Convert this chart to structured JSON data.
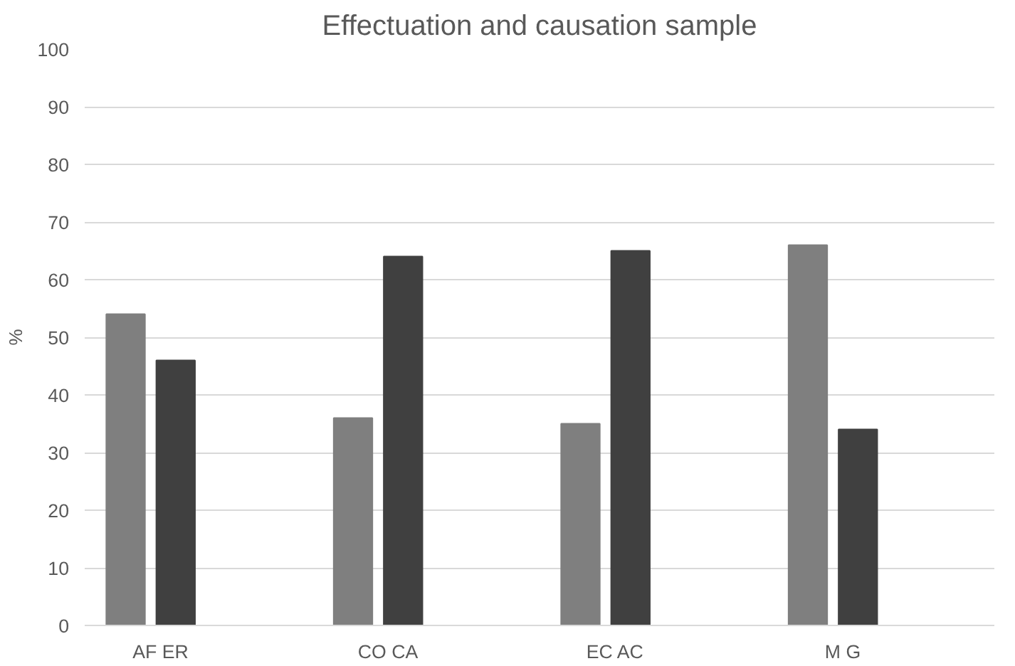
{
  "chart_data": {
    "type": "bar",
    "title": "Effectuation and causation sample",
    "ylabel": "%",
    "categories": [
      "AF  ER",
      "CO  CA",
      "EC  AC",
      "M  G"
    ],
    "series": [
      {
        "color": "#7f7f7f",
        "values": [
          54,
          36,
          35,
          66
        ]
      },
      {
        "color": "#404040",
        "values": [
          46,
          64,
          65,
          34
        ]
      }
    ],
    "ylim": [
      0,
      100
    ],
    "yticks": [
      0,
      10,
      20,
      30,
      40,
      50,
      60,
      70,
      80,
      90,
      100
    ],
    "grid": "y"
  }
}
